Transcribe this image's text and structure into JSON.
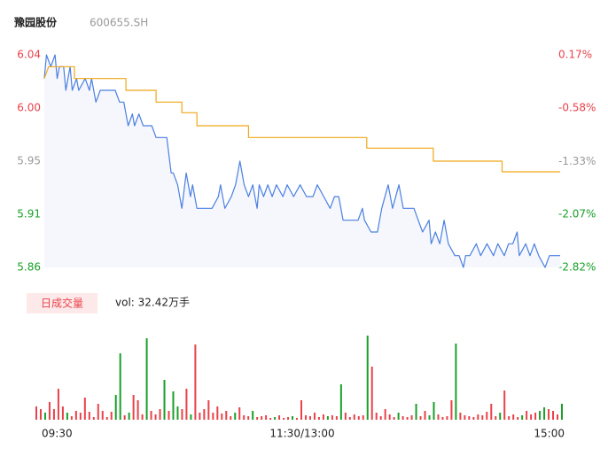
{
  "chart_data": {
    "type": "line",
    "title": "豫园股份",
    "subtitle": "600655.SH",
    "xlim": [
      0,
      240
    ],
    "xticks": [
      {
        "value": 0,
        "label": "09:30"
      },
      {
        "value": 120,
        "label": "11:30/13:00"
      },
      {
        "value": 240,
        "label": "15:00"
      }
    ],
    "ylim": [
      5.86,
      6.04
    ],
    "yticks": [
      {
        "value": 6.04,
        "label": "6.04"
      },
      {
        "value": 5.995,
        "label": "6.00"
      },
      {
        "value": 5.95,
        "label": "5.95"
      },
      {
        "value": 5.905,
        "label": "5.91"
      },
      {
        "value": 5.86,
        "label": "5.86"
      }
    ],
    "y2lim": [
      -2.82,
      0.17
    ],
    "y2ticks": [
      {
        "value": 0.17,
        "label": "0.17%"
      },
      {
        "value": -0.58,
        "label": "-0.58%"
      },
      {
        "value": -1.33,
        "label": "-1.33%"
      },
      {
        "value": -2.07,
        "label": "-2.07%"
      },
      {
        "value": -2.82,
        "label": "-2.82%"
      }
    ],
    "tick_colors": [
      "#e8424a",
      "#e8424a",
      "#999999",
      "#1aa02a",
      "#1aa02a"
    ],
    "series": [
      {
        "color": "#4a7fe0",
        "fill": "#f5f7fd",
        "x": [
          0,
          1,
          3,
          5,
          6,
          7,
          9,
          10,
          12,
          13,
          15,
          16,
          19,
          21,
          22,
          24,
          26,
          28,
          31,
          33,
          35,
          37,
          39,
          41,
          42,
          44,
          46,
          48,
          50,
          52,
          54,
          56,
          57,
          59,
          60,
          62,
          64,
          66,
          68,
          69,
          71,
          73,
          76,
          78,
          81,
          82,
          84,
          87,
          89,
          91,
          93,
          95,
          97,
          99,
          100,
          102,
          104,
          106,
          108,
          111,
          113,
          116,
          119,
          122,
          125,
          127,
          130,
          133,
          135,
          137,
          139,
          142,
          146,
          148,
          149,
          152,
          155,
          157,
          160,
          162,
          165,
          167,
          170,
          172,
          174,
          176,
          179,
          180,
          182,
          184,
          186,
          188,
          191,
          193,
          195,
          196,
          198,
          201,
          203,
          206,
          209,
          211,
          214,
          216,
          218,
          220,
          221,
          224,
          226,
          228,
          230,
          233,
          235,
          240
        ],
        "values": [
          6.02,
          6.04,
          6.03,
          6.04,
          6.02,
          6.03,
          6.03,
          6.01,
          6.03,
          6.01,
          6.02,
          6.01,
          6.02,
          6.01,
          6.02,
          6.0,
          6.01,
          6.01,
          6.01,
          6.01,
          6.0,
          6.0,
          5.98,
          5.99,
          5.98,
          5.99,
          5.98,
          5.98,
          5.98,
          5.97,
          5.97,
          5.97,
          5.97,
          5.94,
          5.94,
          5.93,
          5.91,
          5.94,
          5.92,
          5.93,
          5.91,
          5.91,
          5.91,
          5.91,
          5.92,
          5.93,
          5.91,
          5.92,
          5.93,
          5.95,
          5.93,
          5.92,
          5.93,
          5.91,
          5.93,
          5.92,
          5.93,
          5.92,
          5.93,
          5.92,
          5.93,
          5.92,
          5.93,
          5.92,
          5.92,
          5.93,
          5.92,
          5.91,
          5.92,
          5.92,
          5.9,
          5.9,
          5.9,
          5.91,
          5.9,
          5.89,
          5.89,
          5.91,
          5.93,
          5.91,
          5.93,
          5.91,
          5.91,
          5.91,
          5.9,
          5.89,
          5.9,
          5.88,
          5.89,
          5.88,
          5.9,
          5.88,
          5.87,
          5.87,
          5.86,
          5.87,
          5.87,
          5.88,
          5.87,
          5.88,
          5.87,
          5.88,
          5.87,
          5.88,
          5.88,
          5.89,
          5.87,
          5.88,
          5.87,
          5.88,
          5.87,
          5.86,
          5.87,
          5.87
        ]
      },
      {
        "color": "#f0a818",
        "x": [
          0,
          2,
          14,
          14,
          38,
          38,
          52,
          52,
          64,
          64,
          71,
          71,
          95,
          95,
          150,
          150,
          181,
          181,
          213,
          213,
          240
        ],
        "values": [
          6.02,
          6.03,
          6.03,
          6.02,
          6.02,
          6.01,
          6.01,
          6.0,
          6.0,
          5.991,
          5.991,
          5.98,
          5.98,
          5.97,
          5.97,
          5.961,
          5.961,
          5.95,
          5.95,
          5.941,
          5.941
        ]
      }
    ],
    "volume": {
      "label": "日成交量",
      "text": "vol: 32.42万手",
      "ylim": [
        0,
        100
      ],
      "up_color": "#e8424a",
      "down_color": "#1aa02a",
      "values": [
        15,
        12,
        8,
        20,
        12,
        35,
        15,
        8,
        4,
        10,
        8,
        25,
        9,
        3,
        18,
        10,
        3,
        9,
        28,
        75,
        5,
        8,
        28,
        22,
        6,
        92,
        10,
        6,
        12,
        45,
        10,
        32,
        15,
        12,
        35,
        6,
        85,
        8,
        12,
        22,
        8,
        15,
        7,
        10,
        4,
        8,
        14,
        5,
        4,
        10,
        3,
        4,
        5,
        2,
        3,
        5,
        2,
        3,
        4,
        2,
        22,
        5,
        4,
        8,
        3,
        6,
        4,
        5,
        4,
        40,
        8,
        3,
        6,
        4,
        5,
        95,
        60,
        8,
        4,
        12,
        6,
        3,
        8,
        4,
        3,
        5,
        18,
        4,
        10,
        5,
        20,
        6,
        3,
        4,
        22,
        86,
        8,
        5,
        4,
        3,
        6,
        5,
        9,
        18,
        4,
        8,
        33,
        4,
        6,
        3,
        5,
        10,
        6,
        8,
        10,
        14,
        12,
        10,
        6,
        18
      ],
      "rise": [
        true,
        true,
        false,
        true,
        true,
        true,
        true,
        false,
        true,
        true,
        true,
        true,
        true,
        true,
        true,
        true,
        true,
        true,
        false,
        false,
        true,
        false,
        true,
        true,
        true,
        false,
        true,
        true,
        true,
        false,
        true,
        false,
        false,
        true,
        true,
        false,
        true,
        true,
        true,
        true,
        true,
        true,
        true,
        true,
        true,
        false,
        true,
        true,
        true,
        false,
        true,
        true,
        true,
        true,
        false,
        true,
        true,
        true,
        false,
        true,
        true,
        true,
        true,
        true,
        true,
        true,
        false,
        true,
        true,
        false,
        true,
        true,
        true,
        true,
        true,
        false,
        true,
        true,
        true,
        true,
        true,
        true,
        false,
        true,
        true,
        true,
        false,
        true,
        true,
        false,
        false,
        true,
        true,
        true,
        true,
        false,
        true,
        true,
        true,
        true,
        true,
        true,
        true,
        true,
        true,
        false,
        true,
        true,
        true,
        true,
        false,
        true,
        true,
        true,
        false,
        false,
        true,
        true,
        true,
        false
      ]
    }
  }
}
